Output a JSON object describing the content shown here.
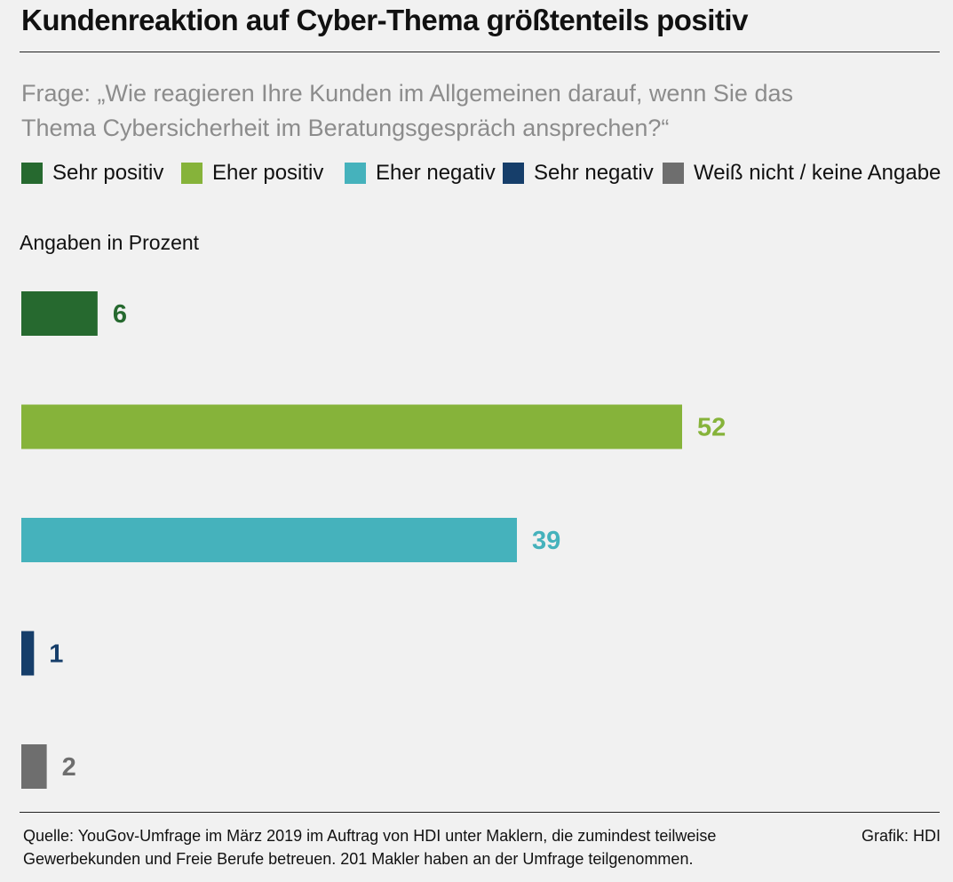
{
  "title": "Kundenreaktion auf Cyber-Thema größtenteils positiv",
  "question": "Frage: „Wie reagieren Ihre Kunden im Allgemeinen darauf, wenn Sie das Thema Cybersicherheit im Beratungsgespräch ansprechen?“",
  "legend": [
    {
      "label": "Sehr positiv",
      "color": "#26692f"
    },
    {
      "label": "Eher positiv",
      "color": "#86b33a"
    },
    {
      "label": "Eher negativ",
      "color": "#45b2bc"
    },
    {
      "label": "Sehr negativ",
      "color": "#163e6a"
    },
    {
      "label": "Weiß nicht / keine Angabe",
      "color": "#6e6e6e"
    }
  ],
  "unit_label": "Angaben in Prozent",
  "chart_data": {
    "type": "bar",
    "orientation": "horizontal",
    "categories": [
      "Sehr positiv",
      "Eher positiv",
      "Eher negativ",
      "Sehr negativ",
      "Weiß nicht / keine Angabe"
    ],
    "values": [
      6,
      52,
      39,
      1,
      2
    ],
    "colors": [
      "#26692f",
      "#86b33a",
      "#45b2bc",
      "#163e6a",
      "#6e6e6e"
    ],
    "data_labels": [
      "6",
      "52",
      "39",
      "1",
      "2"
    ],
    "xlim": [
      0,
      52
    ],
    "grid": false,
    "legend": "top"
  },
  "footer": {
    "source": "Quelle: YouGov-Umfrage im März 2019 im Auftrag von HDI unter Maklern, die zumindest teilweise Gewerbekunden und Freie Berufe betreuen. 201 Makler haben an der Umfrage teilgenommen.",
    "credit": "Grafik: HDI"
  }
}
